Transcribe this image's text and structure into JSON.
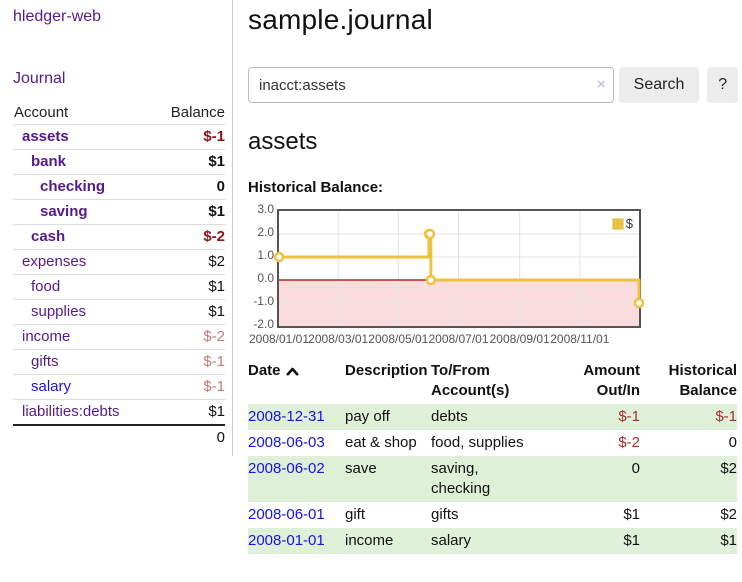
{
  "app": {
    "brand": "hledger-web",
    "nav_journal": "Journal"
  },
  "colors": {
    "link_purple": "#551a8b",
    "link_blue": "#1a16d9",
    "date_link_blue": "#1414e0",
    "negative_strong": "#8f1414",
    "negative_soft": "#c67a7a",
    "register_negative": "#a03030",
    "row_stripe_green": "#dff0d8",
    "series_gold": "#edc240",
    "chart_negative_region": "#fbdcdc",
    "chart_zero_line": "#a40000"
  },
  "sidebar": {
    "headers": {
      "account": "Account",
      "balance": "Balance"
    },
    "accounts": [
      {
        "name": "assets",
        "balance": "$-1",
        "indent": 0,
        "emph": true,
        "tone": "neg-strong",
        "link": "purple"
      },
      {
        "name": "bank",
        "balance": "$1",
        "indent": 1,
        "emph": true,
        "tone": "plain",
        "link": "purple"
      },
      {
        "name": "checking",
        "balance": "0",
        "indent": 2,
        "emph": true,
        "tone": "plain",
        "link": "purple"
      },
      {
        "name": "saving",
        "balance": "$1",
        "indent": 2,
        "emph": true,
        "tone": "plain",
        "link": "purple"
      },
      {
        "name": "cash",
        "balance": "$-2",
        "indent": 1,
        "emph": true,
        "tone": "neg-strong",
        "link": "purple"
      },
      {
        "name": "expenses",
        "balance": "$2",
        "indent": 0,
        "emph": false,
        "tone": "plain",
        "link": "purple"
      },
      {
        "name": "food",
        "balance": "$1",
        "indent": 1,
        "emph": false,
        "tone": "plain",
        "link": "purple"
      },
      {
        "name": "supplies",
        "balance": "$1",
        "indent": 1,
        "emph": false,
        "tone": "plain",
        "link": "purple"
      },
      {
        "name": "income",
        "balance": "$-2",
        "indent": 0,
        "emph": false,
        "tone": "neg-soft",
        "link": "purple"
      },
      {
        "name": "gifts",
        "balance": "$-1",
        "indent": 1,
        "emph": false,
        "tone": "neg-soft",
        "link": "purple"
      },
      {
        "name": "salary",
        "balance": "$-1",
        "indent": 1,
        "emph": false,
        "tone": "neg-soft",
        "link": "blue"
      },
      {
        "name": "liabilities:debts",
        "balance": "$1",
        "indent": 0,
        "emph": false,
        "tone": "plain",
        "link": "purple"
      }
    ],
    "total": "0"
  },
  "main": {
    "title": "sample.journal",
    "search": {
      "value": "inacct:assets",
      "clear_icon": "×",
      "button": "Search",
      "help": "?"
    },
    "account_heading": "assets",
    "section_label": "Historical Balance:"
  },
  "chart_data": {
    "type": "line",
    "step": true,
    "title": "Historical Balance",
    "legend": "$",
    "legend_position": "top-right",
    "grid": true,
    "series": [
      {
        "name": "$",
        "color": "#edc240",
        "points": [
          [
            "2008-01-01",
            1
          ],
          [
            "2008-06-01",
            2
          ],
          [
            "2008-06-02",
            2
          ],
          [
            "2008-06-03",
            0
          ],
          [
            "2008-12-31",
            -1
          ]
        ]
      }
    ],
    "ylim": [
      -2,
      3
    ],
    "yticks": [
      3.0,
      2.0,
      1.0,
      0.0,
      -1.0,
      -2.0
    ],
    "xlim": [
      "2008-01-01",
      "2008-12-31"
    ],
    "xtick_labels": [
      "2008/01/01",
      "2008/03/01",
      "2008/05/01",
      "2008/07/01",
      "2008/09/01",
      "2008/11/01"
    ]
  },
  "register": {
    "headers": {
      "date": "Date",
      "sort_icon": "chevron-up",
      "description": "Description",
      "accounts_line1": "To/From",
      "accounts_line2": "Account(s)",
      "amount_line1": "Amount",
      "amount_line2": "Out/In",
      "balance_line1": "Historical",
      "balance_line2": "Balance"
    },
    "rows": [
      {
        "date": "2008-12-31",
        "description": "pay off",
        "accounts": "debts",
        "amount": "$-1",
        "amount_neg": true,
        "balance": "$-1",
        "balance_neg": true
      },
      {
        "date": "2008-06-03",
        "description": "eat & shop",
        "accounts": "food, supplies",
        "amount": "$-2",
        "amount_neg": true,
        "balance": "0",
        "balance_neg": false
      },
      {
        "date": "2008-06-02",
        "description": "save",
        "accounts": "saving, checking",
        "amount": "0",
        "amount_neg": false,
        "balance": "$2",
        "balance_neg": false
      },
      {
        "date": "2008-06-01",
        "description": "gift",
        "accounts": "gifts",
        "amount": "$1",
        "amount_neg": false,
        "balance": "$2",
        "balance_neg": false
      },
      {
        "date": "2008-01-01",
        "description": "income",
        "accounts": "salary",
        "amount": "$1",
        "amount_neg": false,
        "balance": "$1",
        "balance_neg": false
      }
    ]
  }
}
